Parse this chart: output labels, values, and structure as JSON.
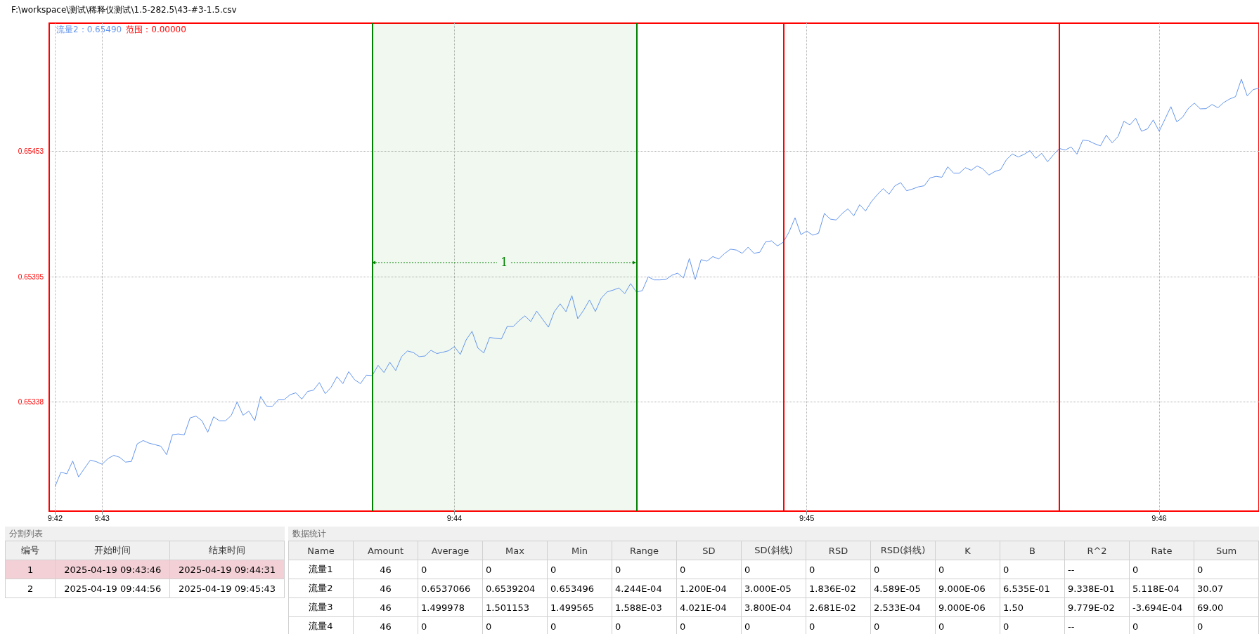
{
  "chart_data": [
    {
      "type": "line",
      "title": "F:\\workspace\\测试\\稀释仪测试\\1.5-282.5\\43-#3-1.5.csv",
      "annotations": [
        "流量2：0.65490",
        "范围：0.00000"
      ],
      "bands": [
        {
          "axis": "x",
          "from": "2025-04-19T09:43:46",
          "to": "2025-04-19T09:44:31",
          "label": "1",
          "color": "#008000"
        }
      ],
      "series": [
        {
          "color": "#6495ed",
          "x": [
            "2025-04-19T09:42:52",
            "2025-04-19T09:42:53",
            "2025-04-19T09:42:54",
            "2025-04-19T09:42:55",
            "2025-04-19T09:42:56",
            "2025-04-19T09:42:57",
            "2025-04-19T09:42:58",
            "2025-04-19T09:42:59",
            "2025-04-19T09:43:00",
            "2025-04-19T09:43:01",
            "2025-04-19T09:43:02",
            "2025-04-19T09:43:03",
            "2025-04-19T09:43:04",
            "2025-04-19T09:43:05",
            "2025-04-19T09:43:06",
            "2025-04-19T09:43:07",
            "2025-04-19T09:43:08",
            "2025-04-19T09:43:09",
            "2025-04-19T09:43:10",
            "2025-04-19T09:43:11",
            "2025-04-19T09:43:12",
            "2025-04-19T09:43:13",
            "2025-04-19T09:43:14",
            "2025-04-19T09:43:15",
            "2025-04-19T09:43:16",
            "2025-04-19T09:43:17",
            "2025-04-19T09:43:18",
            "2025-04-19T09:43:19",
            "2025-04-19T09:43:20",
            "2025-04-19T09:43:21",
            "2025-04-19T09:43:22",
            "2025-04-19T09:43:23",
            "2025-04-19T09:43:24",
            "2025-04-19T09:43:25",
            "2025-04-19T09:43:26",
            "2025-04-19T09:43:27",
            "2025-04-19T09:43:28",
            "2025-04-19T09:43:29",
            "2025-04-19T09:43:30",
            "2025-04-19T09:43:31",
            "2025-04-19T09:43:32",
            "2025-04-19T09:43:33",
            "2025-04-19T09:43:34",
            "2025-04-19T09:43:35",
            "2025-04-19T09:43:36",
            "2025-04-19T09:43:37",
            "2025-04-19T09:43:38",
            "2025-04-19T09:43:39",
            "2025-04-19T09:43:40",
            "2025-04-19T09:43:41",
            "2025-04-19T09:43:42",
            "2025-04-19T09:43:43",
            "2025-04-19T09:43:44",
            "2025-04-19T09:43:45",
            "2025-04-19T09:43:46",
            "2025-04-19T09:43:47",
            "2025-04-19T09:43:48",
            "2025-04-19T09:43:49",
            "2025-04-19T09:43:50",
            "2025-04-19T09:43:51",
            "2025-04-19T09:43:52",
            "2025-04-19T09:43:53",
            "2025-04-19T09:43:54",
            "2025-04-19T09:43:55",
            "2025-04-19T09:43:56",
            "2025-04-19T09:43:57",
            "2025-04-19T09:43:58",
            "2025-04-19T09:43:59",
            "2025-04-19T09:44:00",
            "2025-04-19T09:44:01",
            "2025-04-19T09:44:02",
            "2025-04-19T09:44:03",
            "2025-04-19T09:44:04",
            "2025-04-19T09:44:05",
            "2025-04-19T09:44:06",
            "2025-04-19T09:44:07",
            "2025-04-19T09:44:08",
            "2025-04-19T09:44:09",
            "2025-04-19T09:44:10",
            "2025-04-19T09:44:11",
            "2025-04-19T09:44:12",
            "2025-04-19T09:44:13",
            "2025-04-19T09:44:14",
            "2025-04-19T09:44:15",
            "2025-04-19T09:44:16",
            "2025-04-19T09:44:17",
            "2025-04-19T09:44:18",
            "2025-04-19T09:44:19",
            "2025-04-19T09:44:20",
            "2025-04-19T09:44:21",
            "2025-04-19T09:44:22",
            "2025-04-19T09:44:23",
            "2025-04-19T09:44:24",
            "2025-04-19T09:44:25",
            "2025-04-19T09:44:26",
            "2025-04-19T09:44:27",
            "2025-04-19T09:44:28",
            "2025-04-19T09:44:29",
            "2025-04-19T09:44:30",
            "2025-04-19T09:44:31",
            "2025-04-19T09:44:32",
            "2025-04-19T09:44:33",
            "2025-04-19T09:44:34",
            "2025-04-19T09:44:35",
            "2025-04-19T09:44:36",
            "2025-04-19T09:44:37",
            "2025-04-19T09:44:38",
            "2025-04-19T09:44:39",
            "2025-04-19T09:44:40",
            "2025-04-19T09:44:41",
            "2025-04-19T09:44:42",
            "2025-04-19T09:44:43",
            "2025-04-19T09:44:44",
            "2025-04-19T09:44:45",
            "2025-04-19T09:44:46",
            "2025-04-19T09:44:47",
            "2025-04-19T09:44:48",
            "2025-04-19T09:44:49",
            "2025-04-19T09:44:50",
            "2025-04-19T09:44:51",
            "2025-04-19T09:44:52",
            "2025-04-19T09:44:53",
            "2025-04-19T09:44:54",
            "2025-04-19T09:44:55",
            "2025-04-19T09:44:56",
            "2025-04-19T09:44:57",
            "2025-04-19T09:44:58",
            "2025-04-19T09:44:59",
            "2025-04-19T09:45:00",
            "2025-04-19T09:45:01",
            "2025-04-19T09:45:02",
            "2025-04-19T09:45:03",
            "2025-04-19T09:45:04",
            "2025-04-19T09:45:05",
            "2025-04-19T09:45:06",
            "2025-04-19T09:45:07",
            "2025-04-19T09:45:08",
            "2025-04-19T09:45:09",
            "2025-04-19T09:45:10",
            "2025-04-19T09:45:11",
            "2025-04-19T09:45:12",
            "2025-04-19T09:45:13",
            "2025-04-19T09:45:14",
            "2025-04-19T09:45:15",
            "2025-04-19T09:45:16",
            "2025-04-19T09:45:17",
            "2025-04-19T09:45:18",
            "2025-04-19T09:45:19",
            "2025-04-19T09:45:20",
            "2025-04-19T09:45:21",
            "2025-04-19T09:45:22",
            "2025-04-19T09:45:23",
            "2025-04-19T09:45:24",
            "2025-04-19T09:45:25",
            "2025-04-19T09:45:26",
            "2025-04-19T09:45:27",
            "2025-04-19T09:45:28",
            "2025-04-19T09:45:29",
            "2025-04-19T09:45:30",
            "2025-04-19T09:45:31",
            "2025-04-19T09:45:32",
            "2025-04-19T09:45:33",
            "2025-04-19T09:45:34",
            "2025-04-19T09:45:35",
            "2025-04-19T09:45:36",
            "2025-04-19T09:45:37",
            "2025-04-19T09:45:38",
            "2025-04-19T09:45:39",
            "2025-04-19T09:45:40",
            "2025-04-19T09:45:41",
            "2025-04-19T09:45:42",
            "2025-04-19T09:45:43",
            "2025-04-19T09:45:44",
            "2025-04-19T09:45:45",
            "2025-04-19T09:45:46",
            "2025-04-19T09:45:47",
            "2025-04-19T09:45:48",
            "2025-04-19T09:45:49",
            "2025-04-19T09:45:50",
            "2025-04-19T09:45:51",
            "2025-04-19T09:45:52",
            "2025-04-19T09:45:53",
            "2025-04-19T09:45:54",
            "2025-04-19T09:45:55",
            "2025-04-19T09:45:56",
            "2025-04-19T09:45:57",
            "2025-04-19T09:45:58",
            "2025-04-19T09:45:59",
            "2025-04-19T09:46:00",
            "2025-04-19T09:46:01",
            "2025-04-19T09:46:02",
            "2025-04-19T09:46:03",
            "2025-04-19T09:46:04",
            "2025-04-19T09:46:05",
            "2025-04-19T09:46:06",
            "2025-04-19T09:46:07",
            "2025-04-19T09:46:08",
            "2025-04-19T09:46:09",
            "2025-04-19T09:46:10",
            "2025-04-19T09:46:11",
            "2025-04-19T09:46:12",
            "2025-04-19T09:46:13",
            "2025-04-19T09:46:14",
            "2025-04-19T09:46:15",
            "2025-04-19T09:46:16",
            "2025-04-19T09:46:17"
          ],
          "values": [
            0.652992,
            0.653058,
            0.65305,
            0.653109,
            0.653036,
            0.653075,
            0.653113,
            0.653106,
            0.653094,
            0.65312,
            0.653135,
            0.653126,
            0.653104,
            0.653107,
            0.653188,
            0.653203,
            0.653191,
            0.653184,
            0.653177,
            0.653138,
            0.65323,
            0.653233,
            0.653229,
            0.653307,
            0.653315,
            0.653294,
            0.653241,
            0.653312,
            0.653293,
            0.653293,
            0.653318,
            0.65338,
            0.653319,
            0.653338,
            0.653294,
            0.653405,
            0.653361,
            0.65336,
            0.65339,
            0.65339,
            0.653413,
            0.653422,
            0.653393,
            0.653428,
            0.653434,
            0.653469,
            0.653418,
            0.653447,
            0.653496,
            0.653464,
            0.653519,
            0.653482,
            0.653464,
            0.653503,
            0.653501,
            0.653548,
            0.653515,
            0.653562,
            0.653524,
            0.653588,
            0.653614,
            0.653607,
            0.653588,
            0.653591,
            0.653617,
            0.653602,
            0.653608,
            0.653615,
            0.653634,
            0.653598,
            0.653665,
            0.653704,
            0.653627,
            0.653605,
            0.653676,
            0.653672,
            0.653669,
            0.653727,
            0.653726,
            0.653753,
            0.653775,
            0.653749,
            0.653797,
            0.65376,
            0.653723,
            0.653794,
            0.65383,
            0.653794,
            0.653868,
            0.653762,
            0.653801,
            0.653848,
            0.653795,
            0.653856,
            0.653885,
            0.653893,
            0.653903,
            0.653877,
            0.653923,
            0.653884,
            0.653891,
            0.653954,
            0.65394,
            0.65394,
            0.653942,
            0.653961,
            0.653971,
            0.653949,
            0.654038,
            0.653942,
            0.654033,
            0.654026,
            0.654047,
            0.654036,
            0.654061,
            0.654081,
            0.654077,
            0.654062,
            0.65409,
            0.654062,
            0.654067,
            0.654115,
            0.654119,
            0.654096,
            0.654113,
            0.654161,
            0.654225,
            0.654148,
            0.654164,
            0.654145,
            0.654154,
            0.654245,
            0.654219,
            0.654215,
            0.654244,
            0.654266,
            0.654234,
            0.654285,
            0.654256,
            0.654299,
            0.654331,
            0.654359,
            0.654333,
            0.654372,
            0.654386,
            0.654349,
            0.654357,
            0.654367,
            0.654372,
            0.654408,
            0.654415,
            0.654411,
            0.654459,
            0.65443,
            0.65443,
            0.654455,
            0.654443,
            0.654463,
            0.654449,
            0.654421,
            0.654437,
            0.654446,
            0.654492,
            0.654518,
            0.654504,
            0.654516,
            0.654533,
            0.654498,
            0.654521,
            0.654482,
            0.654514,
            0.654543,
            0.654536,
            0.65455,
            0.654517,
            0.654582,
            0.654578,
            0.654565,
            0.654555,
            0.654604,
            0.654569,
            0.654598,
            0.654668,
            0.654651,
            0.654682,
            0.654622,
            0.654633,
            0.654674,
            0.654622,
            0.654678,
            0.654735,
            0.654665,
            0.654687,
            0.654728,
            0.654751,
            0.654725,
            0.654726,
            0.654745,
            0.65473,
            0.654754,
            0.65477,
            0.654781,
            0.654861,
            0.654784,
            0.654813,
            0.65482
          ]
        }
      ],
      "xlim": [
        "2025-04-19T09:42:51",
        "2025-04-19T09:46:17"
      ],
      "xticks": [
        {
          "value": "2025-04-19T09:42:52",
          "label": "9:42"
        },
        {
          "value": "2025-04-19T09:43",
          "label": "9:43"
        },
        {
          "value": "2025-04-19T09:44",
          "label": "9:44"
        },
        {
          "value": "2025-04-19T09:45",
          "label": "9:45"
        },
        {
          "value": "2025-04-19T09:46",
          "label": "9:46"
        }
      ],
      "ylim": [
        0.652879,
        0.655118
      ],
      "yticks": [
        0.65338,
        {
          "value": 0.653955,
          "label": "0.65395"
        },
        {
          "value": 0.654531,
          "label": "0.65453"
        }
      ],
      "grid": true,
      "ref_lines": [
        {
          "axis": "x",
          "value": "2025-04-19T09:43:46",
          "color": "#008000"
        },
        {
          "axis": "x",
          "value": "2025-04-19T09:44:31",
          "color": "#008000"
        },
        {
          "axis": "x",
          "value": "2025-04-19T09:44:56",
          "color": "#ff0000"
        },
        {
          "axis": "x",
          "value": "2025-04-19T09:45:43",
          "color": "#ff0000"
        }
      ]
    },
    {
      "type": "other",
      "title": "分割列表",
      "categories": [
        "编号",
        "开始时间",
        "结束时间"
      ],
      "annotations": [
        "1",
        "2025-04-19 09:43:46",
        "2025-04-19 09:44:31",
        "2",
        "2025-04-19 09:44:56",
        "2025-04-19 09:45:43"
      ]
    },
    {
      "type": "other",
      "title": "数据统计",
      "categories": [
        "Name",
        "Amount",
        "Average",
        "Max",
        "Min",
        "Range",
        "SD",
        "SD(斜线)",
        "RSD",
        "RSD(斜线)",
        "K",
        "B",
        "R^2",
        "Rate",
        "Sum"
      ],
      "annotations": [
        "流量1",
        "46",
        "0",
        "0",
        "0",
        "0",
        "0",
        "0",
        "0",
        "0",
        "0",
        "0",
        "--",
        "0",
        "0",
        "流量2",
        "46",
        "0.6537066",
        "0.6539204",
        "0.653496",
        "4.244E-04",
        "1.200E-04",
        "3.000E-05",
        "1.836E-02",
        "4.589E-05",
        "9.000E-06",
        "6.535E-01",
        "9.338E-01",
        "5.118E-04",
        "30.07",
        "流量3",
        "46",
        "1.499978",
        "1.501153",
        "1.499565",
        "1.588E-03",
        "4.021E-04",
        "3.800E-04",
        "2.681E-02",
        "2.533E-04",
        "9.000E-06",
        "1.50",
        "9.779E-02",
        "-3.694E-04",
        "69.00",
        "流量4",
        "46",
        "0",
        "0",
        "0",
        "0",
        "0",
        "0",
        "0",
        "0",
        "0",
        "0",
        "--",
        "0",
        "0"
      ]
    }
  ]
}
